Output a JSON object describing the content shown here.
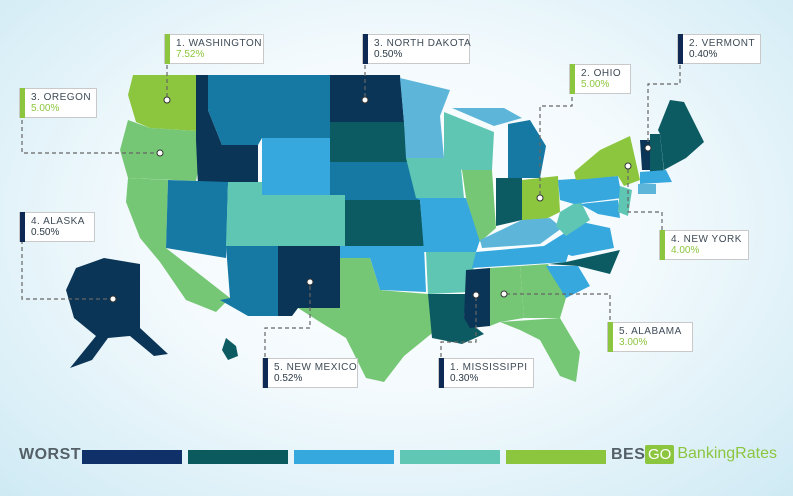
{
  "callouts": {
    "washington": {
      "name": "1. WASHINGTON",
      "value": "7.52%"
    },
    "north_dakota": {
      "name": "3. NORTH DAKOTA",
      "value": "0.50%"
    },
    "vermont": {
      "name": "2. VERMONT",
      "value": "0.40%"
    },
    "oregon": {
      "name": "3. OREGON",
      "value": "5.00%"
    },
    "ohio": {
      "name": "2. OHIO",
      "value": "5.00%"
    },
    "alaska": {
      "name": "4. ALASKA",
      "value": "0.50%"
    },
    "new_york": {
      "name": "4. NEW YORK",
      "value": "4.00%"
    },
    "alabama": {
      "name": "5. ALABAMA",
      "value": "3.00%"
    },
    "new_mexico": {
      "name": "5. NEW MEXICO",
      "value": "0.52%"
    },
    "mississippi": {
      "name": "1. MISSISSIPPI",
      "value": "0.30%"
    }
  },
  "legend": {
    "low_label": "WORST",
    "high_label": "BEST",
    "colors": [
      "#10306a",
      "#0b5a5e",
      "#35a9dd",
      "#5fc7b3",
      "#8cc63f"
    ]
  },
  "brand": {
    "prefix": "GO",
    "name": "BankingRates"
  },
  "state_colors": {
    "worst": "#0b3556",
    "dark_teal": "#0c5b63",
    "steel_blue": "#1679a4",
    "sky_blue": "#36a8de",
    "light_blue": "#5db6da",
    "seafoam": "#60c6b4",
    "light_green": "#76c775",
    "green": "#8cc63f"
  }
}
